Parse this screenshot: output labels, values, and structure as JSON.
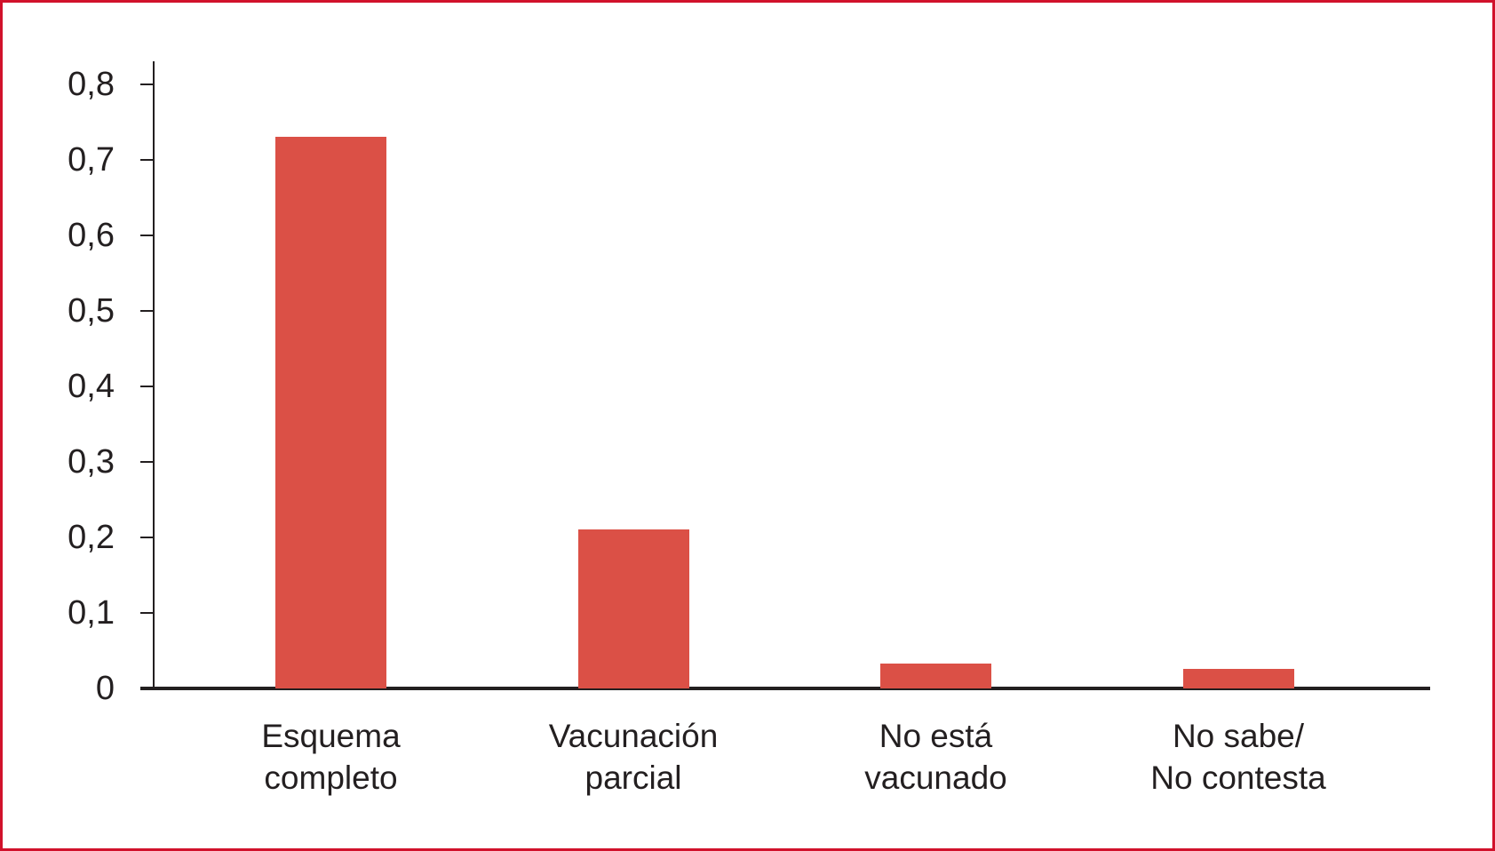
{
  "figure": {
    "frame_color": "#d1112b",
    "background": "#ffffff"
  },
  "chart_data": {
    "type": "bar",
    "title": "",
    "xlabel": "",
    "ylabel": "",
    "categories": [
      "Esquema\ncompleto",
      "Vacunación\nparcial",
      "No está\nvacunado",
      "No sabe/\nNo contesta"
    ],
    "values": [
      0.73,
      0.21,
      0.033,
      0.026
    ],
    "ylim": [
      0,
      0.8
    ],
    "ytick_interval": 0.1,
    "ytick_labels": [
      "0",
      "0,1",
      "0,2",
      "0,3",
      "0,4",
      "0,5",
      "0,6",
      "0,7",
      "0,8"
    ],
    "decimal_separator": ",",
    "grid": false,
    "legend_position": "none",
    "bar_color": "#db5046",
    "axis_color": "#231f20",
    "text_color": "#231f20"
  }
}
